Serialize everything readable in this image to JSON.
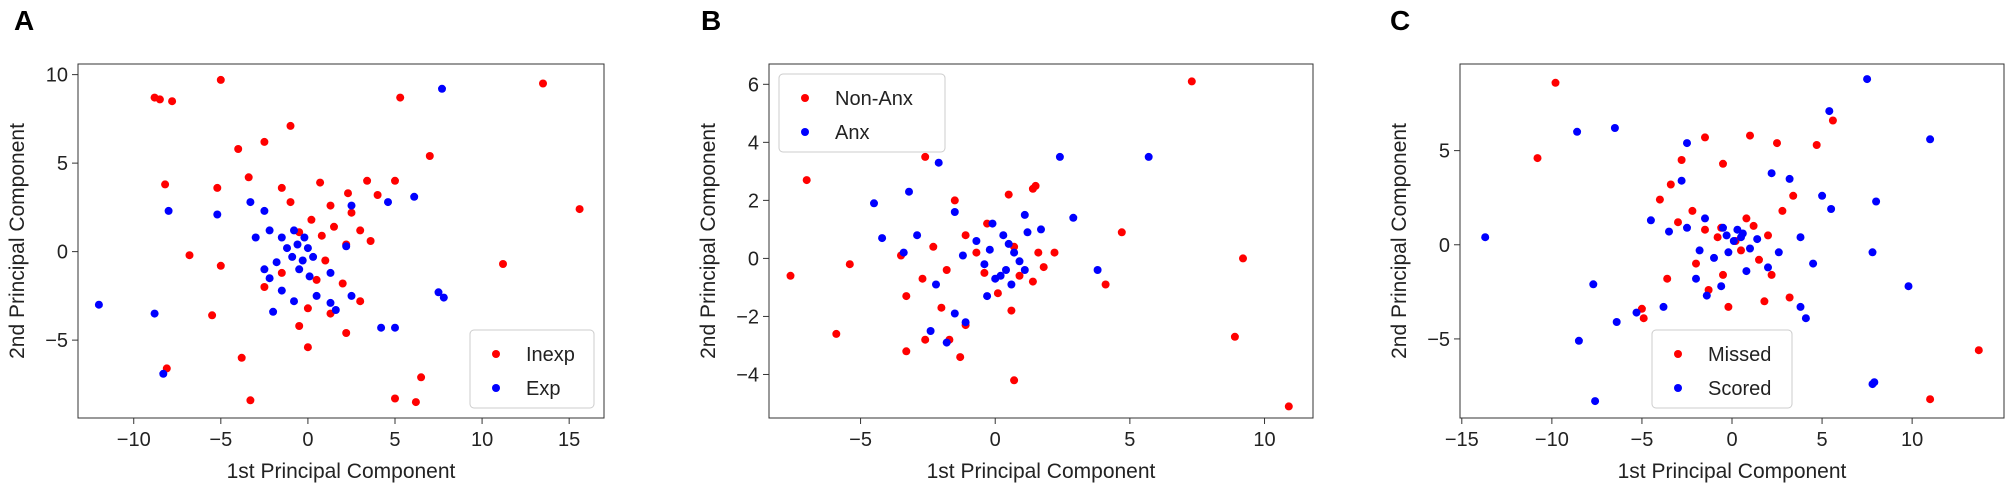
{
  "figure": {
    "panel_letters": [
      "A",
      "B",
      "C"
    ]
  },
  "chart_data": [
    {
      "panel": "A",
      "type": "scatter",
      "xlabel": "1st Principal Component",
      "ylabel": "2nd Principal Component",
      "xlim": [
        -13.2,
        17.0
      ],
      "ylim": [
        -9.4,
        10.6
      ],
      "xticks": [
        -10,
        -5,
        0,
        5,
        10,
        15
      ],
      "yticks": [
        -5,
        0,
        5,
        10
      ],
      "xtick_labels": [
        "−10",
        "−5",
        "0",
        "5",
        "10",
        "15"
      ],
      "ytick_labels": [
        "−5",
        "0",
        "5",
        "10"
      ],
      "grid": false,
      "legend_position": "bottom-right",
      "series": [
        {
          "name": "Inexp",
          "color": "#ff0000",
          "points": [
            [
              -8.8,
              8.7
            ],
            [
              -8.5,
              8.6
            ],
            [
              -7.8,
              8.5
            ],
            [
              -5,
              9.7
            ],
            [
              13.5,
              9.5
            ],
            [
              5.3,
              8.7
            ],
            [
              15.6,
              2.4
            ],
            [
              -4,
              5.8
            ],
            [
              -2.5,
              6.2
            ],
            [
              -1,
              7.1
            ],
            [
              7,
              5.4
            ],
            [
              -8.2,
              3.8
            ],
            [
              -5.2,
              3.6
            ],
            [
              -3.4,
              4.2
            ],
            [
              -1.5,
              3.6
            ],
            [
              0.7,
              3.9
            ],
            [
              3.4,
              4
            ],
            [
              5,
              4
            ],
            [
              4,
              3.2
            ],
            [
              2.3,
              3.3
            ],
            [
              -1,
              2.8
            ],
            [
              1.3,
              2.6
            ],
            [
              2.5,
              2.2
            ],
            [
              0.2,
              1.8
            ],
            [
              1.5,
              1.4
            ],
            [
              3,
              1.2
            ],
            [
              -0.5,
              1.1
            ],
            [
              0.8,
              0.9
            ],
            [
              2.2,
              0.4
            ],
            [
              3.6,
              0.6
            ],
            [
              -6.8,
              -0.2
            ],
            [
              -5,
              -0.8
            ],
            [
              1,
              -0.5
            ],
            [
              -1.5,
              -1.2
            ],
            [
              0.5,
              -1.6
            ],
            [
              2,
              -1.8
            ],
            [
              -2.5,
              -2
            ],
            [
              3,
              -2.8
            ],
            [
              0,
              -3.2
            ],
            [
              1.3,
              -3.5
            ],
            [
              -0.5,
              -4.2
            ],
            [
              2.2,
              -4.6
            ],
            [
              11.2,
              -0.7
            ],
            [
              -5.5,
              -3.6
            ],
            [
              -3.8,
              -6
            ],
            [
              -3.3,
              -8.4
            ],
            [
              0,
              -5.4
            ],
            [
              -8.1,
              -6.6
            ],
            [
              5,
              -8.3
            ],
            [
              6.2,
              -8.5
            ],
            [
              6.5,
              -7.1
            ]
          ]
        },
        {
          "name": "Exp",
          "color": "#0000ff",
          "points": [
            [
              7.7,
              9.2
            ],
            [
              -8,
              2.3
            ],
            [
              -3.3,
              2.8
            ],
            [
              -2.5,
              2.3
            ],
            [
              -2.2,
              1.2
            ],
            [
              -1.5,
              0.8
            ],
            [
              -1.2,
              0.2
            ],
            [
              -0.9,
              -0.3
            ],
            [
              -0.6,
              0.4
            ],
            [
              -0.3,
              -0.5
            ],
            [
              0,
              0.2
            ],
            [
              0.3,
              -0.3
            ],
            [
              -0.8,
              1.2
            ],
            [
              -1.8,
              -0.6
            ],
            [
              -2.2,
              -1.5
            ],
            [
              -1.5,
              -2.2
            ],
            [
              -2,
              -3.4
            ],
            [
              -0.8,
              -2.8
            ],
            [
              0.5,
              -2.5
            ],
            [
              1.3,
              -2.9
            ],
            [
              1.6,
              -3.3
            ],
            [
              2.5,
              -2.5
            ],
            [
              1.3,
              -1.2
            ],
            [
              2.2,
              0.3
            ],
            [
              2.5,
              2.6
            ],
            [
              4.6,
              2.8
            ],
            [
              6.1,
              3.1
            ],
            [
              -3,
              0.8
            ],
            [
              -5.2,
              2.1
            ],
            [
              -0.5,
              -1
            ],
            [
              0.1,
              -1.4
            ],
            [
              -12,
              -3
            ],
            [
              -8.8,
              -3.5
            ],
            [
              -8.3,
              -6.9
            ],
            [
              4.2,
              -4.3
            ],
            [
              5,
              -4.3
            ],
            [
              7.5,
              -2.3
            ],
            [
              7.8,
              -2.6
            ],
            [
              -2.5,
              -1
            ],
            [
              -0.2,
              0.8
            ]
          ]
        }
      ]
    },
    {
      "panel": "B",
      "type": "scatter",
      "xlabel": "1st Principal Component",
      "ylabel": "2nd Principal Component",
      "xlim": [
        -8.4,
        11.8
      ],
      "ylim": [
        -5.5,
        6.7
      ],
      "xticks": [
        -5,
        0,
        5,
        10
      ],
      "yticks": [
        -4,
        -2,
        0,
        2,
        4,
        6
      ],
      "xtick_labels": [
        "−5",
        "0",
        "5",
        "10"
      ],
      "ytick_labels": [
        "−4",
        "−2",
        "0",
        "2",
        "4",
        "6"
      ],
      "grid": false,
      "legend_position": "top-left",
      "series": [
        {
          "name": "Non-Anx",
          "color": "#ff0000",
          "points": [
            [
              7.3,
              6.1
            ],
            [
              -7,
              2.7
            ],
            [
              -7.6,
              -0.6
            ],
            [
              -5.9,
              -2.6
            ],
            [
              -5.4,
              -0.2
            ],
            [
              -2.6,
              3.5
            ],
            [
              -1.5,
              2
            ],
            [
              -0.3,
              1.2
            ],
            [
              0.5,
              2.2
            ],
            [
              1.4,
              2.4
            ],
            [
              1.5,
              2.5
            ],
            [
              -1.1,
              0.8
            ],
            [
              -0.7,
              0.2
            ],
            [
              -1.8,
              -0.4
            ],
            [
              -2.7,
              -0.7
            ],
            [
              -3.3,
              -1.3
            ],
            [
              -2,
              -1.7
            ],
            [
              -1.1,
              -2.3
            ],
            [
              -1.7,
              -2.8
            ],
            [
              -2.6,
              -2.8
            ],
            [
              -3.3,
              -3.2
            ],
            [
              -1.3,
              -3.4
            ],
            [
              0.1,
              -1.2
            ],
            [
              0.6,
              -1.8
            ],
            [
              1.4,
              -0.8
            ],
            [
              1.6,
              0.2
            ],
            [
              0.7,
              0.4
            ],
            [
              1.8,
              -0.3
            ],
            [
              2.2,
              0.2
            ],
            [
              0.7,
              -4.2
            ],
            [
              4.1,
              -0.9
            ],
            [
              4.7,
              0.9
            ],
            [
              9.2,
              0
            ],
            [
              8.9,
              -2.7
            ],
            [
              10.9,
              -5.1
            ],
            [
              -3.5,
              0.1
            ],
            [
              -2.3,
              0.4
            ],
            [
              -0.4,
              -0.5
            ],
            [
              0.9,
              -0.6
            ]
          ]
        },
        {
          "name": "Anx",
          "color": "#0000ff",
          "points": [
            [
              -2.1,
              3.3
            ],
            [
              2.4,
              3.5
            ],
            [
              5.7,
              3.5
            ],
            [
              -4.5,
              1.9
            ],
            [
              -3.2,
              2.3
            ],
            [
              -1.5,
              1.6
            ],
            [
              -0.1,
              1.2
            ],
            [
              0.3,
              0.8
            ],
            [
              0.5,
              0.5
            ],
            [
              0.7,
              0.2
            ],
            [
              0.9,
              -0.1
            ],
            [
              0.4,
              -0.4
            ],
            [
              0.6,
              -0.9
            ],
            [
              0.2,
              -0.6
            ],
            [
              -0.2,
              0.3
            ],
            [
              1.2,
              0.9
            ],
            [
              1.7,
              1
            ],
            [
              1.1,
              1.5
            ],
            [
              2.9,
              1.4
            ],
            [
              -0.7,
              0.6
            ],
            [
              -1.2,
              0.1
            ],
            [
              -2.9,
              0.8
            ],
            [
              -3.4,
              0.2
            ],
            [
              -2.2,
              -0.9
            ],
            [
              -1.5,
              -1.9
            ],
            [
              -0.3,
              -1.3
            ],
            [
              -1.1,
              -2.2
            ],
            [
              -2.4,
              -2.5
            ],
            [
              -1.8,
              -2.9
            ],
            [
              1.1,
              -0.4
            ],
            [
              -0.4,
              -0.2
            ],
            [
              0,
              -0.7
            ],
            [
              3.8,
              -0.4
            ],
            [
              -4.2,
              0.7
            ]
          ]
        }
      ]
    },
    {
      "panel": "C",
      "type": "scatter",
      "xlabel": "1st Principal Component",
      "ylabel": "2nd Principal Component",
      "xlim": [
        -15.1,
        15.1
      ],
      "ylim": [
        -9.2,
        9.6
      ],
      "xticks": [
        -15,
        -10,
        -5,
        0,
        5,
        10
      ],
      "yticks": [
        -5,
        0,
        5
      ],
      "xtick_labels": [
        "−15",
        "−10",
        "−5",
        "0",
        "5",
        "10"
      ],
      "ytick_labels": [
        "−5",
        "0",
        "5"
      ],
      "grid": false,
      "legend_position": "bottom-center",
      "series": [
        {
          "name": "Missed",
          "color": "#ff0000",
          "points": [
            [
              -9.8,
              8.6
            ],
            [
              -10.8,
              4.6
            ],
            [
              5.6,
              6.6
            ],
            [
              4.7,
              5.3
            ],
            [
              -2.8,
              4.5
            ],
            [
              -1.5,
              5.7
            ],
            [
              1,
              5.8
            ],
            [
              2.5,
              5.4
            ],
            [
              -0.5,
              4.3
            ],
            [
              -3.4,
              3.2
            ],
            [
              -4,
              2.4
            ],
            [
              -2.2,
              1.8
            ],
            [
              -3,
              1.2
            ],
            [
              -1.5,
              0.8
            ],
            [
              -0.8,
              0.4
            ],
            [
              0.2,
              0.2
            ],
            [
              1.2,
              1
            ],
            [
              2,
              0.5
            ],
            [
              2.8,
              1.8
            ],
            [
              3.4,
              2.6
            ],
            [
              1.5,
              -0.8
            ],
            [
              2.2,
              -1.6
            ],
            [
              -0.5,
              -1.6
            ],
            [
              -1.3,
              -2.4
            ],
            [
              -0.2,
              -3.3
            ],
            [
              1.8,
              -3
            ],
            [
              3.2,
              -2.8
            ],
            [
              -4.9,
              -3.9
            ],
            [
              -5,
              -3.4
            ],
            [
              11,
              -8.2
            ],
            [
              13.7,
              -5.6
            ],
            [
              0.5,
              -0.3
            ],
            [
              -0.6,
              0.9
            ],
            [
              0.8,
              1.4
            ],
            [
              -2,
              -1
            ],
            [
              -3.6,
              -1.8
            ]
          ]
        },
        {
          "name": "Scored",
          "color": "#0000ff",
          "points": [
            [
              7.5,
              8.8
            ],
            [
              5.4,
              7.1
            ],
            [
              11,
              5.6
            ],
            [
              -8.6,
              6
            ],
            [
              -6.5,
              6.2
            ],
            [
              -13.7,
              0.4
            ],
            [
              -7.7,
              -2.1
            ],
            [
              -8.5,
              -5.1
            ],
            [
              -7.6,
              -8.3
            ],
            [
              -6.4,
              -4.1
            ],
            [
              -5.3,
              -3.6
            ],
            [
              -2.5,
              5.4
            ],
            [
              -2.8,
              3.4
            ],
            [
              2.2,
              3.8
            ],
            [
              3.2,
              3.5
            ],
            [
              -4.5,
              1.3
            ],
            [
              -3.5,
              0.7
            ],
            [
              -2.5,
              0.9
            ],
            [
              -1.5,
              1.4
            ],
            [
              -0.5,
              0.9
            ],
            [
              0.5,
              0.4
            ],
            [
              1,
              -0.2
            ],
            [
              -0.2,
              -0.4
            ],
            [
              0.3,
              0.8
            ],
            [
              -1,
              -0.7
            ],
            [
              -2,
              -1.8
            ],
            [
              -1.4,
              -2.7
            ],
            [
              -0.6,
              -2.2
            ],
            [
              0.8,
              -1.4
            ],
            [
              2,
              -1.2
            ],
            [
              2.6,
              -0.4
            ],
            [
              3.8,
              0.4
            ],
            [
              4.5,
              -1
            ],
            [
              3.8,
              -3.3
            ],
            [
              4.1,
              -3.9
            ],
            [
              5,
              2.6
            ],
            [
              5.5,
              1.9
            ],
            [
              8,
              2.3
            ],
            [
              7.8,
              -0.4
            ],
            [
              9.8,
              -2.2
            ],
            [
              7.9,
              -7.3
            ],
            [
              7.8,
              -7.4
            ],
            [
              -3.8,
              -3.3
            ],
            [
              0.1,
              0.2
            ],
            [
              -0.3,
              0.5
            ],
            [
              0.6,
              0.6
            ],
            [
              1.4,
              0.3
            ],
            [
              -1.8,
              -0.3
            ]
          ]
        }
      ]
    }
  ]
}
